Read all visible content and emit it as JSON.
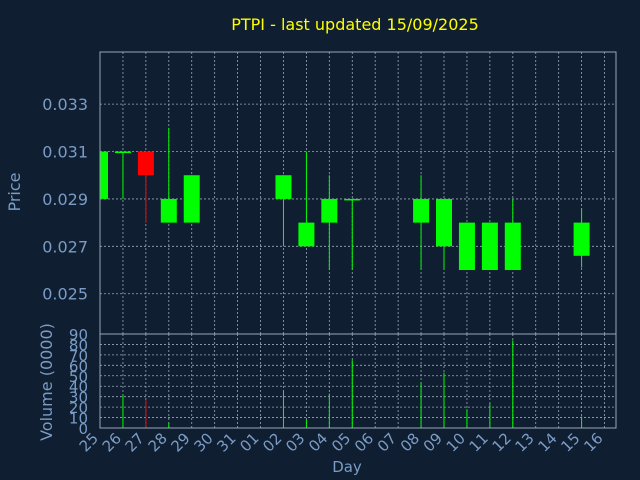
{
  "chart_data": {
    "type": "candlestick",
    "title": "PTPI - last updated 15/09/2025",
    "xlabel": "Day",
    "ylabel_price": "Price",
    "ylabel_volume": "Volume (0000)",
    "price_ylim": [
      0.0233,
      0.0352
    ],
    "volume_ylim": [
      0,
      90
    ],
    "price_ticks": [
      "0.025",
      "0.027",
      "0.029",
      "0.031",
      "0.033"
    ],
    "volume_ticks": [
      "0",
      "10",
      "20",
      "30",
      "40",
      "50",
      "60",
      "70",
      "80",
      "90"
    ],
    "x_labels": [
      "25",
      "26",
      "27",
      "28",
      "29",
      "30",
      "31",
      "01",
      "02",
      "03",
      "04",
      "05",
      "06",
      "07",
      "08",
      "09",
      "10",
      "11",
      "12",
      "13",
      "14",
      "15",
      "16"
    ],
    "grid": true,
    "candles": [
      {
        "day": "25",
        "open": 0.029,
        "high": 0.031,
        "low": 0.029,
        "close": 0.031,
        "volume": 0
      },
      {
        "day": "26",
        "open": 0.031,
        "high": 0.031,
        "low": 0.029,
        "close": 0.031,
        "volume": 32
      },
      {
        "day": "27",
        "open": 0.031,
        "high": 0.031,
        "low": 0.028,
        "close": 0.03,
        "volume": 27
      },
      {
        "day": "28",
        "open": 0.028,
        "high": 0.032,
        "low": 0.028,
        "close": 0.029,
        "volume": 5
      },
      {
        "day": "29",
        "open": 0.028,
        "high": 0.03,
        "low": 0.028,
        "close": 0.03,
        "volume": 0
      },
      {
        "day": "02",
        "open": 0.029,
        "high": 0.03,
        "low": 0.027,
        "close": 0.03,
        "volume": 36
      },
      {
        "day": "03",
        "open": 0.027,
        "high": 0.031,
        "low": 0.027,
        "close": 0.028,
        "volume": 8
      },
      {
        "day": "04",
        "open": 0.028,
        "high": 0.03,
        "low": 0.026,
        "close": 0.029,
        "volume": 33
      },
      {
        "day": "05",
        "open": 0.029,
        "high": 0.029,
        "low": 0.026,
        "close": 0.029,
        "volume": 65
      },
      {
        "day": "08",
        "open": 0.028,
        "high": 0.03,
        "low": 0.026,
        "close": 0.029,
        "volume": 44
      },
      {
        "day": "09",
        "open": 0.027,
        "high": 0.029,
        "low": 0.026,
        "close": 0.029,
        "volume": 53
      },
      {
        "day": "10",
        "open": 0.026,
        "high": 0.028,
        "low": 0.026,
        "close": 0.028,
        "volume": 18
      },
      {
        "day": "11",
        "open": 0.026,
        "high": 0.028,
        "low": 0.026,
        "close": 0.028,
        "volume": 24
      },
      {
        "day": "12",
        "open": 0.026,
        "high": 0.029,
        "low": 0.026,
        "close": 0.028,
        "volume": 84
      },
      {
        "day": "15",
        "open": 0.0266,
        "high": 0.0286,
        "low": 0.0261,
        "close": 0.028,
        "volume": 11
      }
    ]
  },
  "colors": {
    "background": "#0f1e30",
    "title": "#ffff00",
    "axis_text": "#7a9cc6",
    "grid": "#9aa7b8",
    "border": "#9aa7b8",
    "up": "#00ff00",
    "down": "#ff0000"
  }
}
